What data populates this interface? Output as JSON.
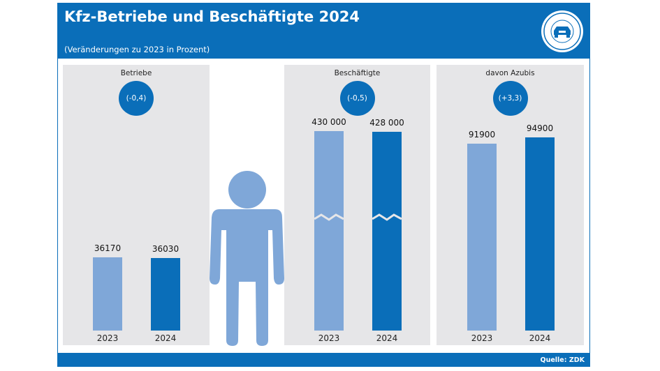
{
  "header": {
    "title": "Kfz-Betriebe und Beschäftigte 2024",
    "subtitle": "(Veränderungen zu 2023 in Prozent)",
    "logo_text": "KRAFTFAHRZEUG GEWERBE"
  },
  "footer": {
    "source": "Quelle: ZDK"
  },
  "colors": {
    "brand": "#0a6eb9",
    "bar_2023": "#7fa7d8",
    "bar_2024": "#0a6eb9",
    "panel": "#e6e6e8",
    "figure": "#7fa7d8"
  },
  "chart_data": [
    {
      "type": "bar",
      "title": "Betriebe",
      "change": "(-0,4)",
      "categories": [
        "2023",
        "2024"
      ],
      "values": [
        36170,
        36030
      ],
      "labels": [
        "36170",
        "36030"
      ],
      "broken_axis": false
    },
    {
      "type": "bar",
      "title": "Beschäftigte",
      "change": "(-0,5)",
      "categories": [
        "2023",
        "2024"
      ],
      "values": [
        430000,
        428000
      ],
      "labels": [
        "430 000",
        "428 000"
      ],
      "broken_axis": true
    },
    {
      "type": "bar",
      "title": "davon Azubis",
      "change": "(+3,3)",
      "categories": [
        "2023",
        "2024"
      ],
      "values": [
        91900,
        94900
      ],
      "labels": [
        "91900",
        "94900"
      ],
      "broken_axis": false
    }
  ]
}
